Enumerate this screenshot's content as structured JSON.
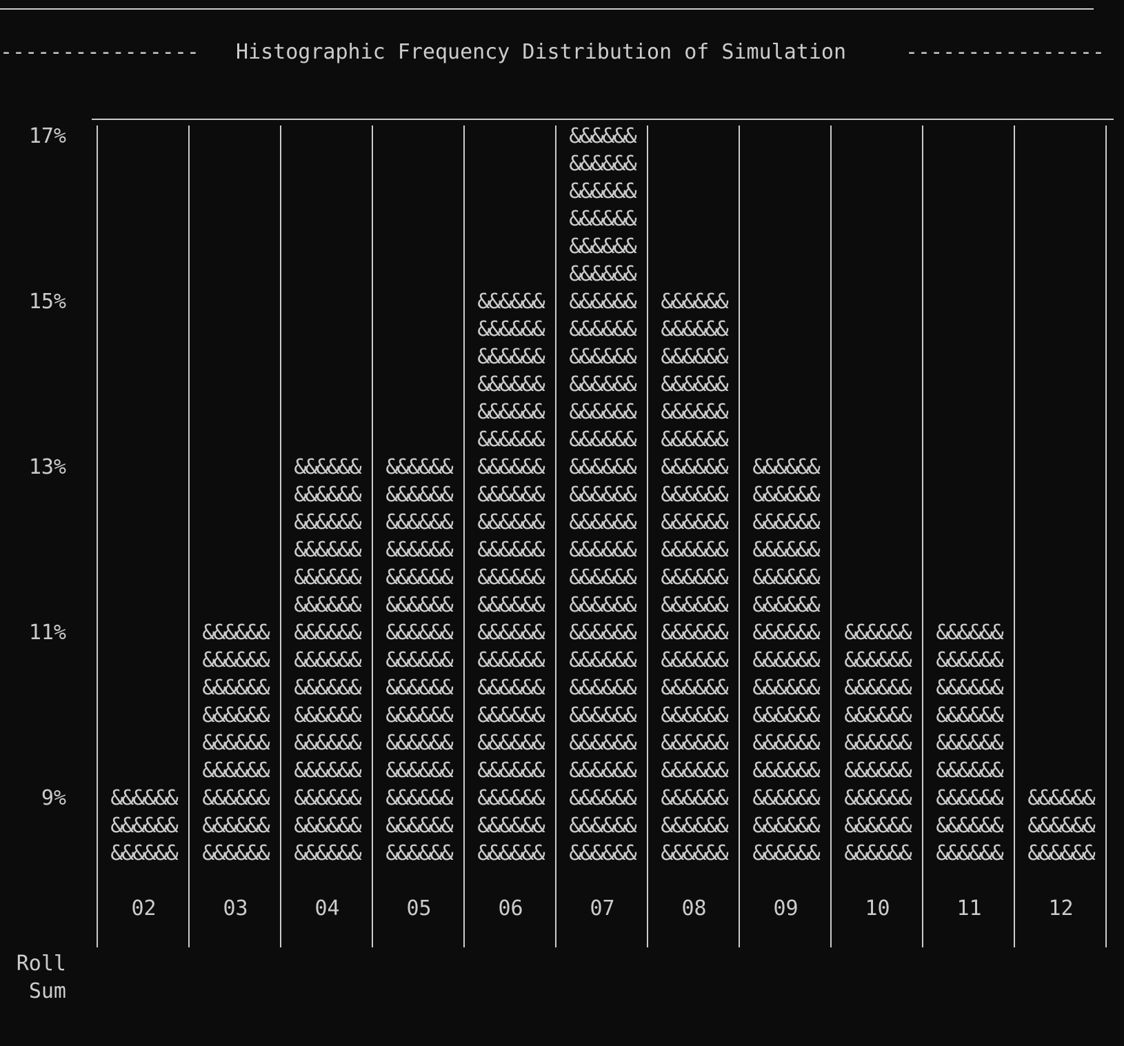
{
  "title_dashes_left": "----------------",
  "title_dashes_right": "----------------",
  "chart_data": {
    "type": "bar",
    "title": "Histographic Frequency Distribution of Simulation",
    "xlabel": "Roll Sum",
    "xlabel_line1": "Roll",
    "xlabel_line2": "Sum",
    "ylabel": "",
    "bar_glyph": "&&&&&&",
    "categories": [
      "02",
      "03",
      "04",
      "05",
      "06",
      "07",
      "08",
      "09",
      "10",
      "11",
      "12"
    ],
    "values": [
      9,
      11,
      13,
      13,
      15,
      17,
      15,
      13,
      11,
      11,
      9
    ],
    "y_ticks": [
      "17%",
      "15%",
      "13%",
      "11%",
      "9%"
    ],
    "y_tick_values": [
      17,
      15,
      13,
      11,
      9
    ],
    "ylim": [
      8,
      17
    ]
  }
}
